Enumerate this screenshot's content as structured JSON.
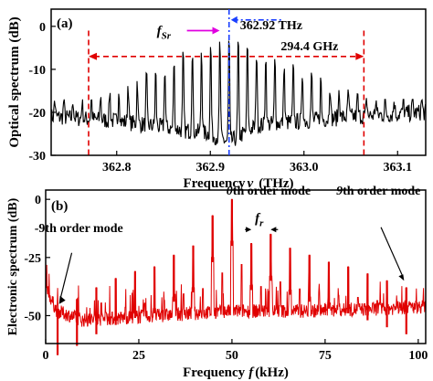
{
  "chart_data": [
    {
      "panel": "(a)",
      "type": "line",
      "xlabel_prefix": "Frequency",
      "xlabel_symbol": "ν",
      "xlabel_unit": "(THz)",
      "ylabel": "Optical spectrum (dB)",
      "xlim": [
        362.73,
        363.13
      ],
      "ylim": [
        -30,
        4
      ],
      "xticks": [
        362.8,
        362.9,
        363.0,
        363.1
      ],
      "xtick_labels": [
        "362.8",
        "362.9",
        "363.0",
        "363.1"
      ],
      "yticks": [
        0,
        -10,
        -20,
        -30
      ],
      "ytick_labels": [
        "0",
        "-10",
        "-20",
        "-30"
      ],
      "series": [
        {
          "color": "#000000",
          "comb_center": 362.92,
          "comb_spacing": 0.0098,
          "envelope": [
            [
              362.73,
              -17
            ],
            [
              362.77,
              -17
            ],
            [
              362.8,
              -14
            ],
            [
              362.85,
              -9
            ],
            [
              362.88,
              -4
            ],
            [
              362.9,
              -3
            ],
            [
              362.92,
              -1
            ],
            [
              362.94,
              -3
            ],
            [
              362.97,
              -7
            ],
            [
              363.0,
              -10
            ],
            [
              363.04,
              -14
            ],
            [
              363.07,
              -17
            ],
            [
              363.13,
              -17
            ]
          ],
          "floor": [
            [
              362.73,
              -21
            ],
            [
              362.8,
              -22
            ],
            [
              362.9,
              -25
            ],
            [
              362.92,
              -27
            ],
            [
              362.95,
              -23
            ],
            [
              363.05,
              -21
            ],
            [
              363.13,
              -20
            ]
          ]
        }
      ],
      "annotations": {
        "center_label": "362.92 THz",
        "center_freq": 362.92,
        "span_label": "294.4 GHz",
        "span_start": 362.77,
        "span_end": 363.064,
        "span_y": -7,
        "fsr_label": "f",
        "fsr_sub": "Sr",
        "fsr_start": 362.875,
        "fsr_end": 362.91,
        "fsr_y": -1
      }
    },
    {
      "panel": "(b)",
      "type": "line",
      "xlabel_prefix": "Frequency",
      "xlabel_symbol": "f",
      "xlabel_unit": "(kHz)",
      "ylabel": "Electronic spectrum (dB)",
      "xlim": [
        0,
        102
      ],
      "ylim": [
        -62,
        4
      ],
      "xticks": [
        0,
        25,
        50,
        75,
        100
      ],
      "xtick_labels": [
        "0",
        "25",
        "50",
        "75",
        "100"
      ],
      "yticks": [
        0,
        -25,
        -50
      ],
      "ytick_labels": [
        "0",
        "-25",
        "-50"
      ],
      "series": [
        {
          "color": "#e00000",
          "line_spacing_khz": 5.2,
          "center_khz": 50,
          "peaks": [
            {
              "order": -9,
              "x": 3.2,
              "y": -47
            },
            {
              "order": -8,
              "x": 8.4,
              "y": -43
            },
            {
              "order": -7,
              "x": 13.6,
              "y": -38
            },
            {
              "order": -6,
              "x": 18.8,
              "y": -34
            },
            {
              "order": -5,
              "x": 24.0,
              "y": -31
            },
            {
              "order": -4,
              "x": 29.2,
              "y": -29
            },
            {
              "order": -3,
              "x": 34.4,
              "y": -24
            },
            {
              "order": -2,
              "x": 39.6,
              "y": -20
            },
            {
              "order": -1,
              "x": 44.8,
              "y": -7
            },
            {
              "order": 0,
              "x": 50.0,
              "y": 0
            },
            {
              "order": 1,
              "x": 55.2,
              "y": -19
            },
            {
              "order": 2,
              "x": 60.4,
              "y": -15
            },
            {
              "order": 3,
              "x": 65.6,
              "y": -21
            },
            {
              "order": 4,
              "x": 70.8,
              "y": -24
            },
            {
              "order": 5,
              "x": 76.0,
              "y": -27
            },
            {
              "order": 6,
              "x": 81.2,
              "y": -29
            },
            {
              "order": 7,
              "x": 86.4,
              "y": -32
            },
            {
              "order": 8,
              "x": 91.6,
              "y": -35
            },
            {
              "order": 9,
              "x": 96.8,
              "y": -38
            }
          ],
          "floor": [
            [
              0,
              -38
            ],
            [
              3,
              -48
            ],
            [
              10,
              -52
            ],
            [
              30,
              -50
            ],
            [
              50,
              -48
            ],
            [
              70,
              -48
            ],
            [
              90,
              -47
            ],
            [
              102,
              -46
            ]
          ]
        }
      ],
      "annotations": {
        "left_mode_label": "-9th order mode",
        "center_mode_num": "0",
        "center_mode_text": "th order mode",
        "right_mode_num": "9",
        "right_mode_text": "th order mode",
        "fr_label": "f",
        "fr_sub": "r",
        "fr_left": 55.2,
        "fr_right": 60.4,
        "fr_y": -13
      }
    }
  ]
}
